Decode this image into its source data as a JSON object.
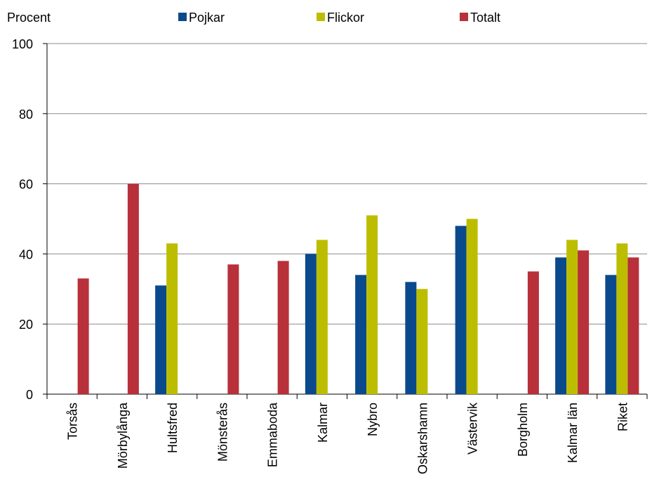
{
  "chart_data": {
    "type": "bar",
    "ylabel": "Procent",
    "ylim": [
      0,
      100
    ],
    "yticks": [
      0,
      20,
      40,
      60,
      80,
      100
    ],
    "grid": true,
    "legend_position": "top",
    "categories": [
      "Torsås",
      "Mörbylånga",
      "Hultsfred",
      "Mönsterås",
      "Emmaboda",
      "Kalmar",
      "Nybro",
      "Oskarshamn",
      "Västervik",
      "Borgholm",
      "Kalmar län",
      "Riket"
    ],
    "series": [
      {
        "name": "Pojkar",
        "color": "#0a4a8c",
        "values": [
          null,
          null,
          31,
          null,
          null,
          40,
          34,
          32,
          48,
          null,
          39,
          34
        ]
      },
      {
        "name": "Flickor",
        "color": "#bdbd00",
        "values": [
          null,
          null,
          43,
          null,
          null,
          44,
          51,
          30,
          50,
          null,
          44,
          43
        ]
      },
      {
        "name": "Totalt",
        "color": "#b8303a",
        "values": [
          33,
          60,
          null,
          37,
          38,
          null,
          null,
          null,
          null,
          35,
          41,
          39
        ]
      }
    ]
  }
}
